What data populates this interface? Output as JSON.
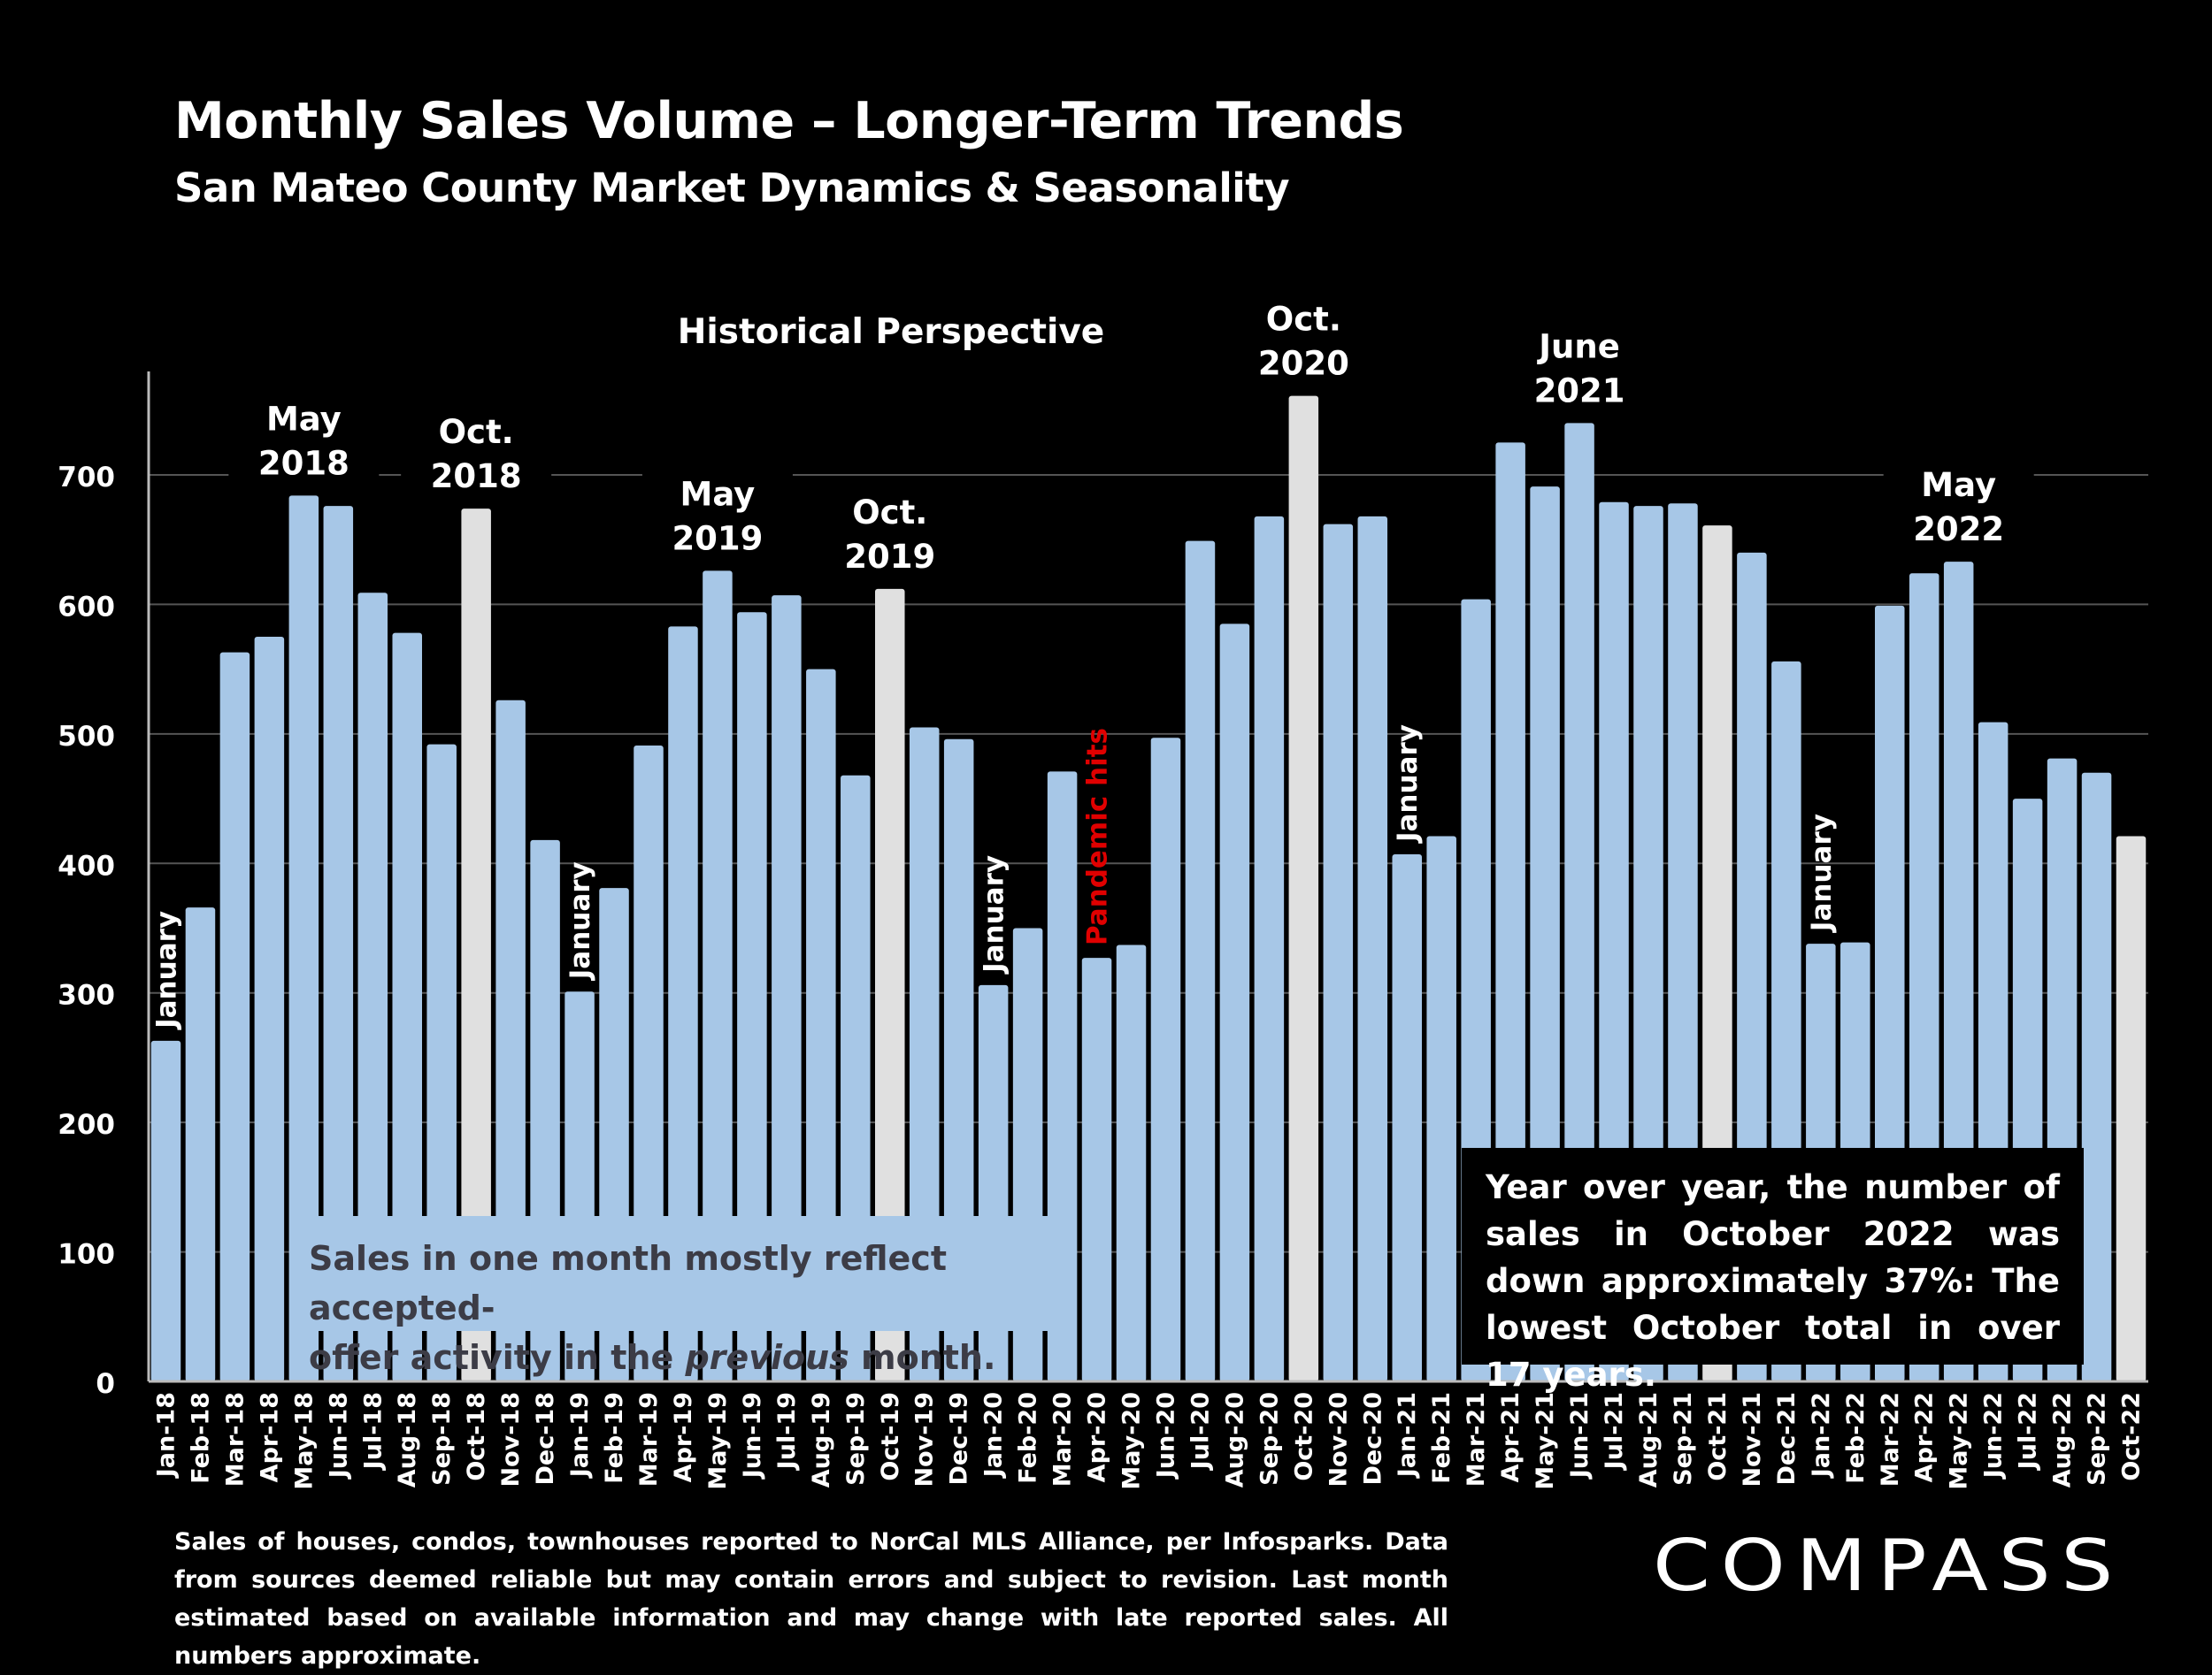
{
  "header": {
    "title": "Monthly Sales Volume – Longer-Term Trends",
    "subtitle": "San Mateo County Market Dynamics & Seasonality"
  },
  "notes": {
    "offer_activity_line1": "Sales in one month mostly reflect accepted-",
    "offer_activity_line2_pre": "offer activity in the ",
    "offer_activity_line2_em": "previous",
    "offer_activity_line2_post": " month.",
    "yoy": "Year over year, the number of sales in October 2022 was down approximately 37%:  The lowest October total in over 17 years."
  },
  "footnote": "Sales of houses, condos, townhouses reported to NorCal MLS Alliance, per Infosparks. Data from sources deemed reliable but may contain errors and subject to revision. Last month estimated based on available information and may change with late reported sales. All numbers approximate.",
  "logo": {
    "text": "COMPASS"
  },
  "colors": {
    "bar": "#a7c7e7",
    "october_bar": "#e0e0e0",
    "background": "#000000",
    "pandemic_label": "#e00000",
    "grid": "#555555"
  },
  "chart_data": {
    "type": "bar",
    "title": "Historical Perspective",
    "ylim": [
      0,
      780
    ],
    "yticks": [
      0,
      100,
      200,
      300,
      400,
      500,
      600,
      700
    ],
    "grid": true,
    "categories": [
      "Jan-18",
      "Feb-18",
      "Mar-18",
      "Apr-18",
      "May-18",
      "Jun-18",
      "Jul-18",
      "Aug-18",
      "Sep-18",
      "Oct-18",
      "Nov-18",
      "Dec-18",
      "Jan-19",
      "Feb-19",
      "Mar-19",
      "Apr-19",
      "May-19",
      "Jun-19",
      "Jul-19",
      "Aug-19",
      "Sep-19",
      "Oct-19",
      "Nov-19",
      "Dec-19",
      "Jan-20",
      "Feb-20",
      "Mar-20",
      "Apr-20",
      "May-20",
      "Jun-20",
      "Jul-20",
      "Aug-20",
      "Sep-20",
      "Oct-20",
      "Nov-20",
      "Dec-20",
      "Jan-21",
      "Feb-21",
      "Mar-21",
      "Apr-21",
      "May-21",
      "Jun-21",
      "Jul-21",
      "Aug-21",
      "Sep-21",
      "Oct-21",
      "Nov-21",
      "Dec-21",
      "Jan-22",
      "Feb-22",
      "Mar-22",
      "Apr-22",
      "May-22",
      "Jun-22",
      "Jul-22",
      "Aug-22",
      "Sep-22",
      "Oct-22"
    ],
    "values": [
      263,
      366,
      563,
      575,
      684,
      676,
      609,
      578,
      492,
      674,
      526,
      418,
      301,
      381,
      491,
      583,
      626,
      594,
      607,
      550,
      468,
      612,
      505,
      496,
      306,
      350,
      471,
      327,
      337,
      497,
      649,
      585,
      668,
      761,
      662,
      668,
      407,
      421,
      604,
      725,
      691,
      740,
      679,
      676,
      678,
      661,
      640,
      556,
      338,
      339,
      599,
      624,
      633,
      509,
      450,
      481,
      470,
      421
    ],
    "highlight_categories": [
      "Oct-18",
      "Oct-19",
      "Oct-20",
      "Oct-21",
      "Oct-22"
    ],
    "annotations": [
      {
        "category": "May-18",
        "lines": [
          "May",
          "2018"
        ]
      },
      {
        "category": "Oct-18",
        "lines": [
          "Oct.",
          "2018"
        ]
      },
      {
        "category": "May-19",
        "lines": [
          "May",
          "2019"
        ]
      },
      {
        "category": "Oct-19",
        "lines": [
          "Oct.",
          "2019"
        ]
      },
      {
        "category": "Oct-20",
        "lines": [
          "Oct.",
          "2020"
        ]
      },
      {
        "category": "Jun-21",
        "lines": [
          "June",
          "2021"
        ]
      },
      {
        "category": "May-22",
        "lines": [
          "May",
          "2022"
        ]
      }
    ],
    "vertical_labels": [
      {
        "category": "Jan-18",
        "text": "January"
      },
      {
        "category": "Jan-19",
        "text": "January"
      },
      {
        "category": "Jan-20",
        "text": "January"
      },
      {
        "category": "Apr-20",
        "text": "Pandemic hits",
        "color": "#e00000"
      },
      {
        "category": "Jan-21",
        "text": "January"
      },
      {
        "category": "Jan-22",
        "text": "January"
      }
    ]
  }
}
